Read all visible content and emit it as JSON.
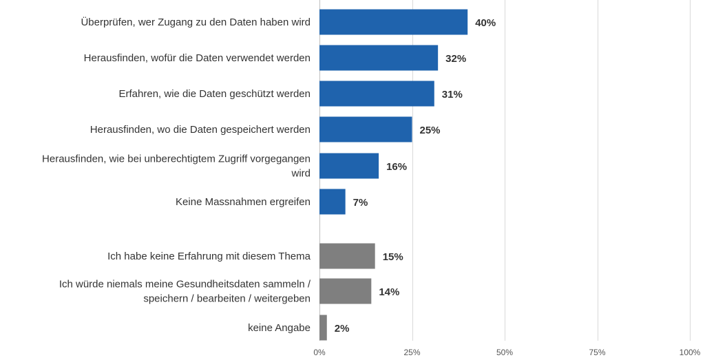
{
  "chart_data": {
    "type": "bar",
    "orientation": "horizontal",
    "title": "",
    "xlabel": "",
    "ylabel": "",
    "xlim": [
      0,
      100
    ],
    "grid": true,
    "legend": "none",
    "ticks": [
      "0%",
      "25%",
      "50%",
      "75%",
      "100%"
    ],
    "tick_values": [
      0,
      25,
      50,
      75,
      100
    ],
    "colors": {
      "primary": "#1f63ad",
      "secondary": "#7f7f7f"
    },
    "items": [
      {
        "label": [
          "Überprüfen, wer Zugang zu den Daten haben wird"
        ],
        "value": 40,
        "value_label": "40%",
        "color": "primary",
        "group": 1
      },
      {
        "label": [
          "Herausfinden, wofür die Daten verwendet werden"
        ],
        "value": 32,
        "value_label": "32%",
        "color": "primary",
        "group": 1
      },
      {
        "label": [
          "Erfahren, wie die Daten geschützt werden"
        ],
        "value": 31,
        "value_label": "31%",
        "color": "primary",
        "group": 1
      },
      {
        "label": [
          "Herausfinden, wo die Daten gespeichert werden"
        ],
        "value": 25,
        "value_label": "25%",
        "color": "primary",
        "group": 1
      },
      {
        "label": [
          "Herausfinden, wie bei unberechtigtem Zugriff vorgegangen",
          "wird"
        ],
        "value": 16,
        "value_label": "16%",
        "color": "primary",
        "group": 1
      },
      {
        "label": [
          "Keine Massnahmen ergreifen"
        ],
        "value": 7,
        "value_label": "7%",
        "color": "primary",
        "group": 1
      },
      {
        "label": [
          "Ich habe keine Erfahrung mit diesem Thema"
        ],
        "value": 15,
        "value_label": "15%",
        "color": "secondary",
        "group": 2
      },
      {
        "label": [
          "Ich würde niemals meine Gesundheitsdaten sammeln /",
          "speichern / bearbeiten / weitergeben"
        ],
        "value": 14,
        "value_label": "14%",
        "color": "secondary",
        "group": 2
      },
      {
        "label": [
          "keine Angabe"
        ],
        "value": 2,
        "value_label": "2%",
        "color": "secondary",
        "group": 2
      }
    ]
  }
}
